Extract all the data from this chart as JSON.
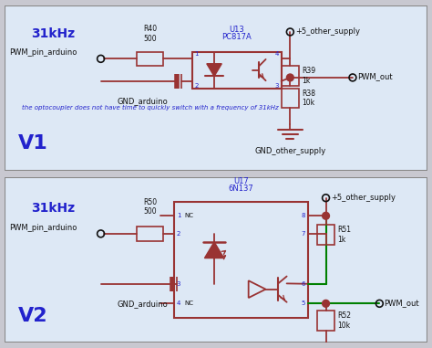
{
  "bg_color": "#c8c8d0",
  "panel_bg": "#dde8f5",
  "panel_border": "#888888",
  "dark_red": "#993333",
  "blue": "#2222cc",
  "green": "#008000",
  "black": "#111111",
  "title1": "31kHz",
  "title2": "31kHz",
  "v1_label": "V1",
  "v2_label": "V2",
  "note": "the optocoupler does not have time to quickly switch with a frequency of 31kHz",
  "u13_top": "U13",
  "u13_bot": "PC817A",
  "u17_top": "U17",
  "u17_bot": "6N137",
  "pwm_pin": "PWM_pin_arduino",
  "gnd_arduino": "GND_arduino",
  "pwm_out": "PWM_out",
  "plus5": "+5_other_supply",
  "gnd_other": "GND_other_supply",
  "r40_lbl": "R40\n500",
  "r39_lbl": "R39\n1k",
  "r38_lbl": "R38\n10k",
  "r50_lbl": "R50\n500",
  "r51_lbl": "R51\n1k",
  "r52_lbl": "R52\n10k"
}
